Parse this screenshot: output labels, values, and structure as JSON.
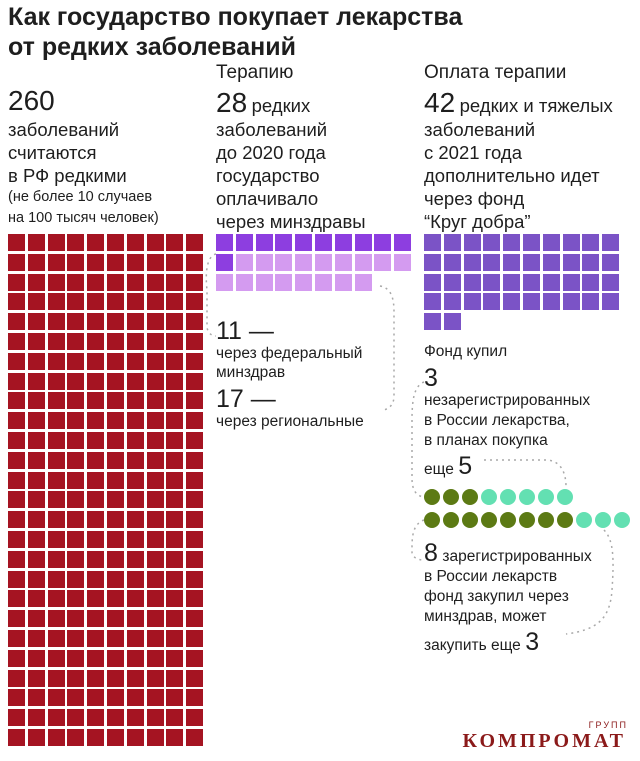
{
  "title_line1": "Как государство покупает лекарства",
  "title_line2": "от редких заболеваний",
  "col1": {
    "number": "260",
    "lines": [
      "заболеваний",
      "считаются",
      "в РФ редкими"
    ],
    "note_lines": [
      "(не более 10 случаев",
      "на 100 тысяч человек)"
    ],
    "count": 260
  },
  "col2": {
    "heading": "Терапию",
    "number": "28",
    "number_suffix": "редких",
    "lines": [
      "заболеваний",
      "до 2020 года",
      "государство",
      "оплачивало",
      "через минздравы"
    ],
    "count": 28,
    "federal_count": 11,
    "regional_count": 17,
    "federal_number": "11 —",
    "federal_text_lines": [
      "через федеральный",
      "минздрав"
    ],
    "regional_number": "17 —",
    "regional_text": "через региональные"
  },
  "col3": {
    "heading": "Оплата терапии",
    "number": "42",
    "number_suffix": "редких и тяжелых",
    "lines": [
      "заболеваний",
      "с 2021 года",
      "дополнительно идет",
      "через фонд",
      "“Круг добра”"
    ],
    "count": 42,
    "fund_bought": "Фонд купил",
    "unreg_number": "3",
    "unreg_lines": [
      "незарегистрированных",
      "в России лекарства,",
      "в планах покупка"
    ],
    "more_label": "еще",
    "more_number": "5",
    "reg_number": "8",
    "reg_lines": [
      "зарегистрированных",
      "в России лекарств",
      "фонд закупил через",
      "минздрав, может"
    ],
    "reg_more_label": "закупить еще",
    "reg_more_number": "3",
    "dots_row1": {
      "bought": 3,
      "planned": 5
    },
    "dots_row2": {
      "bought": 8,
      "planned": 3
    }
  },
  "watermark": {
    "text": "КОМПРОМАТ",
    "small": "ГРУПП"
  },
  "colors": {
    "maroon": "#a51422",
    "purple_dark": "#8d3ee0",
    "purple_light": "#d49bf0",
    "violet": "#7b53c6",
    "olive": "#5c7a14",
    "mint": "#63e0b2",
    "dotted": "#a9a9a9"
  }
}
